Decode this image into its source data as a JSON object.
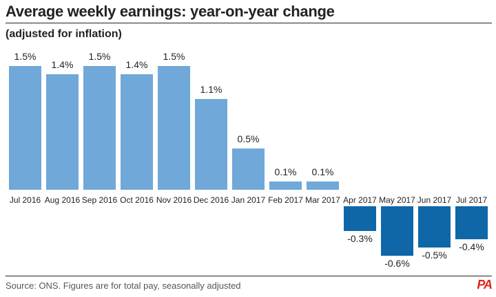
{
  "header": {
    "title": "Average weekly earnings: year-on-year change",
    "subtitle": "(adjusted for inflation)"
  },
  "footer": {
    "source": "Source: ONS. Figures are for total pay, seasonally adjusted",
    "logo_text": "PA"
  },
  "colors": {
    "positive": "#6fa8d9",
    "negative": "#0f67a8"
  },
  "chart_data": {
    "type": "bar",
    "title": "Average weekly earnings: year-on-year change",
    "subtitle": "(adjusted for inflation)",
    "categories": [
      "Jul 2016",
      "Aug 2016",
      "Sep 2016",
      "Oct 2016",
      "Nov 2016",
      "Dec 2016",
      "Jan 2017",
      "Feb 2017",
      "Mar 2017",
      "Apr 2017",
      "May 2017",
      "Jun 2017",
      "Jul 2017"
    ],
    "values": [
      1.5,
      1.4,
      1.5,
      1.4,
      1.5,
      1.1,
      0.5,
      0.1,
      0.1,
      -0.3,
      -0.6,
      -0.5,
      -0.4
    ],
    "labels": [
      "1.5%",
      "1.4%",
      "1.5%",
      "1.4%",
      "1.5%",
      "1.1%",
      "0.5%",
      "0.1%",
      "0.1%",
      "-0.3%",
      "-0.6%",
      "-0.5%",
      "-0.4%"
    ],
    "unit": "%",
    "xlabel": "",
    "ylabel": "",
    "grid": false,
    "legend": "none"
  }
}
